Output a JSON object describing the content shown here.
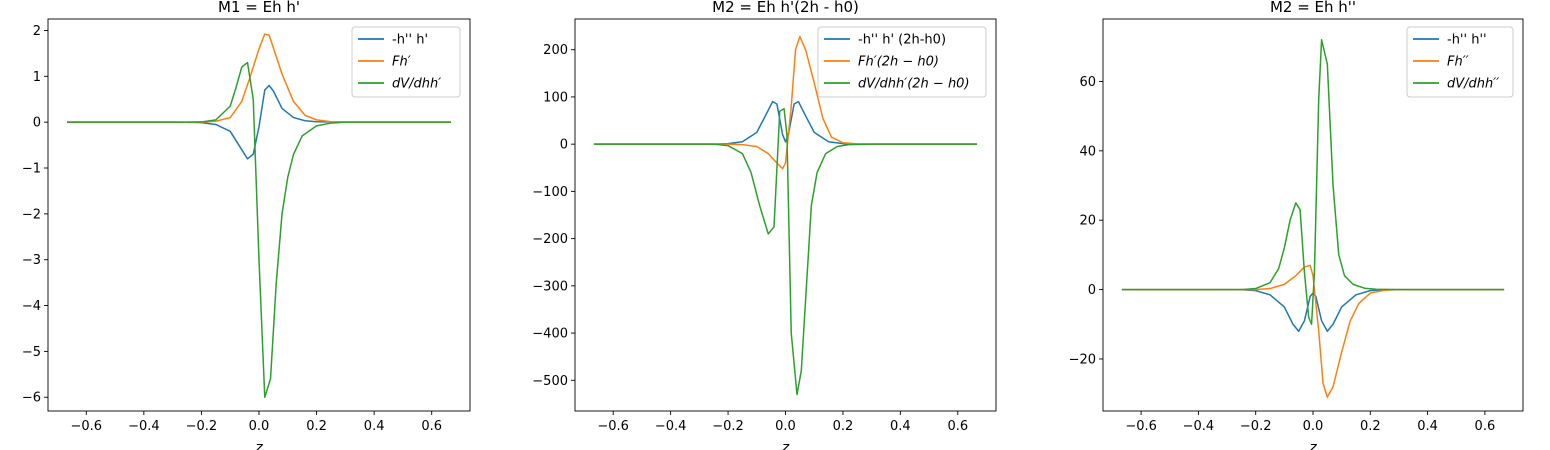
{
  "chart_data": [
    {
      "type": "line",
      "title": "M1 = Eh h'",
      "xlabel": "z",
      "ylabel": "",
      "xlim": [
        -0.733,
        0.733
      ],
      "ylim": [
        -6.3,
        2.25
      ],
      "xticks": [
        -0.6,
        -0.4,
        -0.2,
        0.0,
        0.2,
        0.4,
        0.6
      ],
      "xtick_labels": [
        "−0.6",
        "−0.4",
        "−0.2",
        "0.0",
        "0.2",
        "0.4",
        "0.6"
      ],
      "yticks": [
        -6,
        -5,
        -4,
        -3,
        -2,
        -1,
        0,
        1,
        2
      ],
      "ytick_labels": [
        "−6",
        "−5",
        "−4",
        "−3",
        "−2",
        "−1",
        "0",
        "1",
        "2"
      ],
      "legend": "top-right",
      "series": [
        {
          "name": "-h'' h'",
          "color": "#1f77b4",
          "x": [
            -0.667,
            -0.3,
            -0.25,
            -0.2,
            -0.15,
            -0.1,
            -0.07,
            -0.04,
            -0.02,
            0.0,
            0.02,
            0.035,
            0.05,
            0.08,
            0.12,
            0.16,
            0.2,
            0.3,
            0.667
          ],
          "y": [
            0,
            0,
            -0.002,
            -0.01,
            -0.05,
            -0.2,
            -0.5,
            -0.8,
            -0.7,
            -0.1,
            0.7,
            0.8,
            0.68,
            0.3,
            0.1,
            0.03,
            0.01,
            0,
            0
          ]
        },
        {
          "name": "Fh′",
          "color": "#ff7f0e",
          "x": [
            -0.667,
            -0.2,
            -0.15,
            -0.1,
            -0.06,
            -0.03,
            0.0,
            0.02,
            0.035,
            0.05,
            0.08,
            0.12,
            0.16,
            0.2,
            0.25,
            0.3,
            0.667
          ],
          "y": [
            0,
            0,
            0.02,
            0.1,
            0.45,
            1.0,
            1.6,
            1.92,
            1.9,
            1.62,
            1.05,
            0.45,
            0.15,
            0.05,
            0.01,
            0,
            0
          ]
        },
        {
          "name": "dV/dhh′",
          "color": "#2ca02c",
          "x": [
            -0.667,
            -0.25,
            -0.2,
            -0.15,
            -0.1,
            -0.08,
            -0.06,
            -0.04,
            -0.02,
            0.0,
            0.02,
            0.04,
            0.06,
            0.08,
            0.1,
            0.12,
            0.15,
            0.2,
            0.25,
            0.3,
            0.667
          ],
          "y": [
            0,
            0,
            0.005,
            0.05,
            0.35,
            0.75,
            1.2,
            1.3,
            0.5,
            -3.0,
            -6.0,
            -5.6,
            -3.5,
            -2.0,
            -1.2,
            -0.7,
            -0.3,
            -0.08,
            -0.02,
            0,
            0
          ]
        }
      ]
    },
    {
      "type": "line",
      "title": "M2 = Eh h'(2h - h0)",
      "xlabel": "z",
      "ylabel": "",
      "xlim": [
        -0.733,
        0.733
      ],
      "ylim": [
        -565,
        265
      ],
      "xticks": [
        -0.6,
        -0.4,
        -0.2,
        0.0,
        0.2,
        0.4,
        0.6
      ],
      "xtick_labels": [
        "−0.6",
        "−0.4",
        "−0.2",
        "0.0",
        "0.2",
        "0.4",
        "0.6"
      ],
      "yticks": [
        -500,
        -400,
        -300,
        -200,
        -100,
        0,
        100,
        200
      ],
      "ytick_labels": [
        "−500",
        "−400",
        "−300",
        "−200",
        "−100",
        "0",
        "100",
        "200"
      ],
      "legend": "top-right",
      "series": [
        {
          "name": "-h'' h' (2h-h0)",
          "color": "#1f77b4",
          "x": [
            -0.667,
            -0.25,
            -0.2,
            -0.15,
            -0.1,
            -0.07,
            -0.045,
            -0.03,
            -0.01,
            0.0,
            0.01,
            0.03,
            0.045,
            0.07,
            0.1,
            0.15,
            0.2,
            0.25,
            0.667
          ],
          "y": [
            0,
            0,
            1,
            5,
            25,
            60,
            90,
            85,
            20,
            5,
            20,
            85,
            90,
            60,
            25,
            5,
            1,
            0,
            0
          ]
        },
        {
          "name": "Fh′(2h − h0)",
          "color": "#ff7f0e",
          "x": [
            -0.667,
            -0.2,
            -0.15,
            -0.1,
            -0.06,
            -0.03,
            -0.01,
            0.0,
            0.02,
            0.035,
            0.05,
            0.07,
            0.1,
            0.13,
            0.16,
            0.2,
            0.25,
            0.3,
            0.667
          ],
          "y": [
            0,
            0,
            -1,
            -5,
            -20,
            -40,
            -52,
            -40,
            80,
            200,
            228,
            200,
            130,
            55,
            15,
            3,
            0.5,
            0,
            0
          ]
        },
        {
          "name": "dV/dhh′(2h − h0)",
          "color": "#2ca02c",
          "x": [
            -0.667,
            -0.25,
            -0.2,
            -0.15,
            -0.12,
            -0.09,
            -0.06,
            -0.04,
            -0.02,
            -0.005,
            0.005,
            0.02,
            0.04,
            0.055,
            0.07,
            0.09,
            0.11,
            0.14,
            0.18,
            0.22,
            0.3,
            0.667
          ],
          "y": [
            0,
            0,
            -3,
            -20,
            -60,
            -130,
            -190,
            -175,
            70,
            75,
            20,
            -400,
            -530,
            -480,
            -330,
            -130,
            -60,
            -20,
            -5,
            -1,
            0,
            0
          ]
        }
      ]
    },
    {
      "type": "line",
      "title": "M2 = Eh h''",
      "xlabel": "z",
      "ylabel": "",
      "xlim": [
        -0.733,
        0.733
      ],
      "ylim": [
        -35,
        78
      ],
      "xticks": [
        -0.6,
        -0.4,
        -0.2,
        0.0,
        0.2,
        0.4,
        0.6
      ],
      "xtick_labels": [
        "−0.6",
        "−0.4",
        "−0.2",
        "0.0",
        "0.2",
        "0.4",
        "0.6"
      ],
      "yticks": [
        -20,
        0,
        20,
        40,
        60
      ],
      "ytick_labels": [
        "−20",
        "0",
        "20",
        "40",
        "60"
      ],
      "legend": "top-right",
      "series": [
        {
          "name": "-h'' h''",
          "color": "#1f77b4",
          "x": [
            -0.667,
            -0.25,
            -0.2,
            -0.15,
            -0.1,
            -0.07,
            -0.05,
            -0.03,
            -0.01,
            0.0,
            0.01,
            0.03,
            0.05,
            0.07,
            0.1,
            0.15,
            0.2,
            0.25,
            0.667
          ],
          "y": [
            0,
            0,
            -0.3,
            -1.5,
            -5,
            -10,
            -12,
            -9,
            -2,
            -1,
            -2,
            -9,
            -12,
            -10,
            -5,
            -1.5,
            -0.3,
            0,
            0
          ]
        },
        {
          "name": "Fh′′",
          "color": "#ff7f0e",
          "x": [
            -0.667,
            -0.2,
            -0.15,
            -0.1,
            -0.06,
            -0.03,
            -0.01,
            0.0,
            0.02,
            0.035,
            0.05,
            0.07,
            0.1,
            0.13,
            0.16,
            0.2,
            0.25,
            0.3,
            0.667
          ],
          "y": [
            0,
            0,
            0.3,
            1.5,
            4,
            6.5,
            7,
            4,
            -12,
            -27,
            -31,
            -28,
            -18,
            -9,
            -4,
            -1,
            -0.2,
            0,
            0
          ]
        },
        {
          "name": "dV/dhh′′",
          "color": "#2ca02c",
          "x": [
            -0.667,
            -0.25,
            -0.2,
            -0.15,
            -0.12,
            -0.1,
            -0.08,
            -0.06,
            -0.045,
            -0.03,
            -0.015,
            -0.005,
            0.005,
            0.02,
            0.03,
            0.05,
            0.07,
            0.09,
            0.11,
            0.14,
            0.18,
            0.22,
            0.3,
            0.667
          ],
          "y": [
            0,
            0,
            0.3,
            2,
            6,
            12,
            20,
            25,
            23,
            5,
            -8,
            -10,
            5,
            55,
            72,
            65,
            30,
            10,
            4,
            1.5,
            0.4,
            0.1,
            0,
            0
          ]
        }
      ]
    }
  ]
}
